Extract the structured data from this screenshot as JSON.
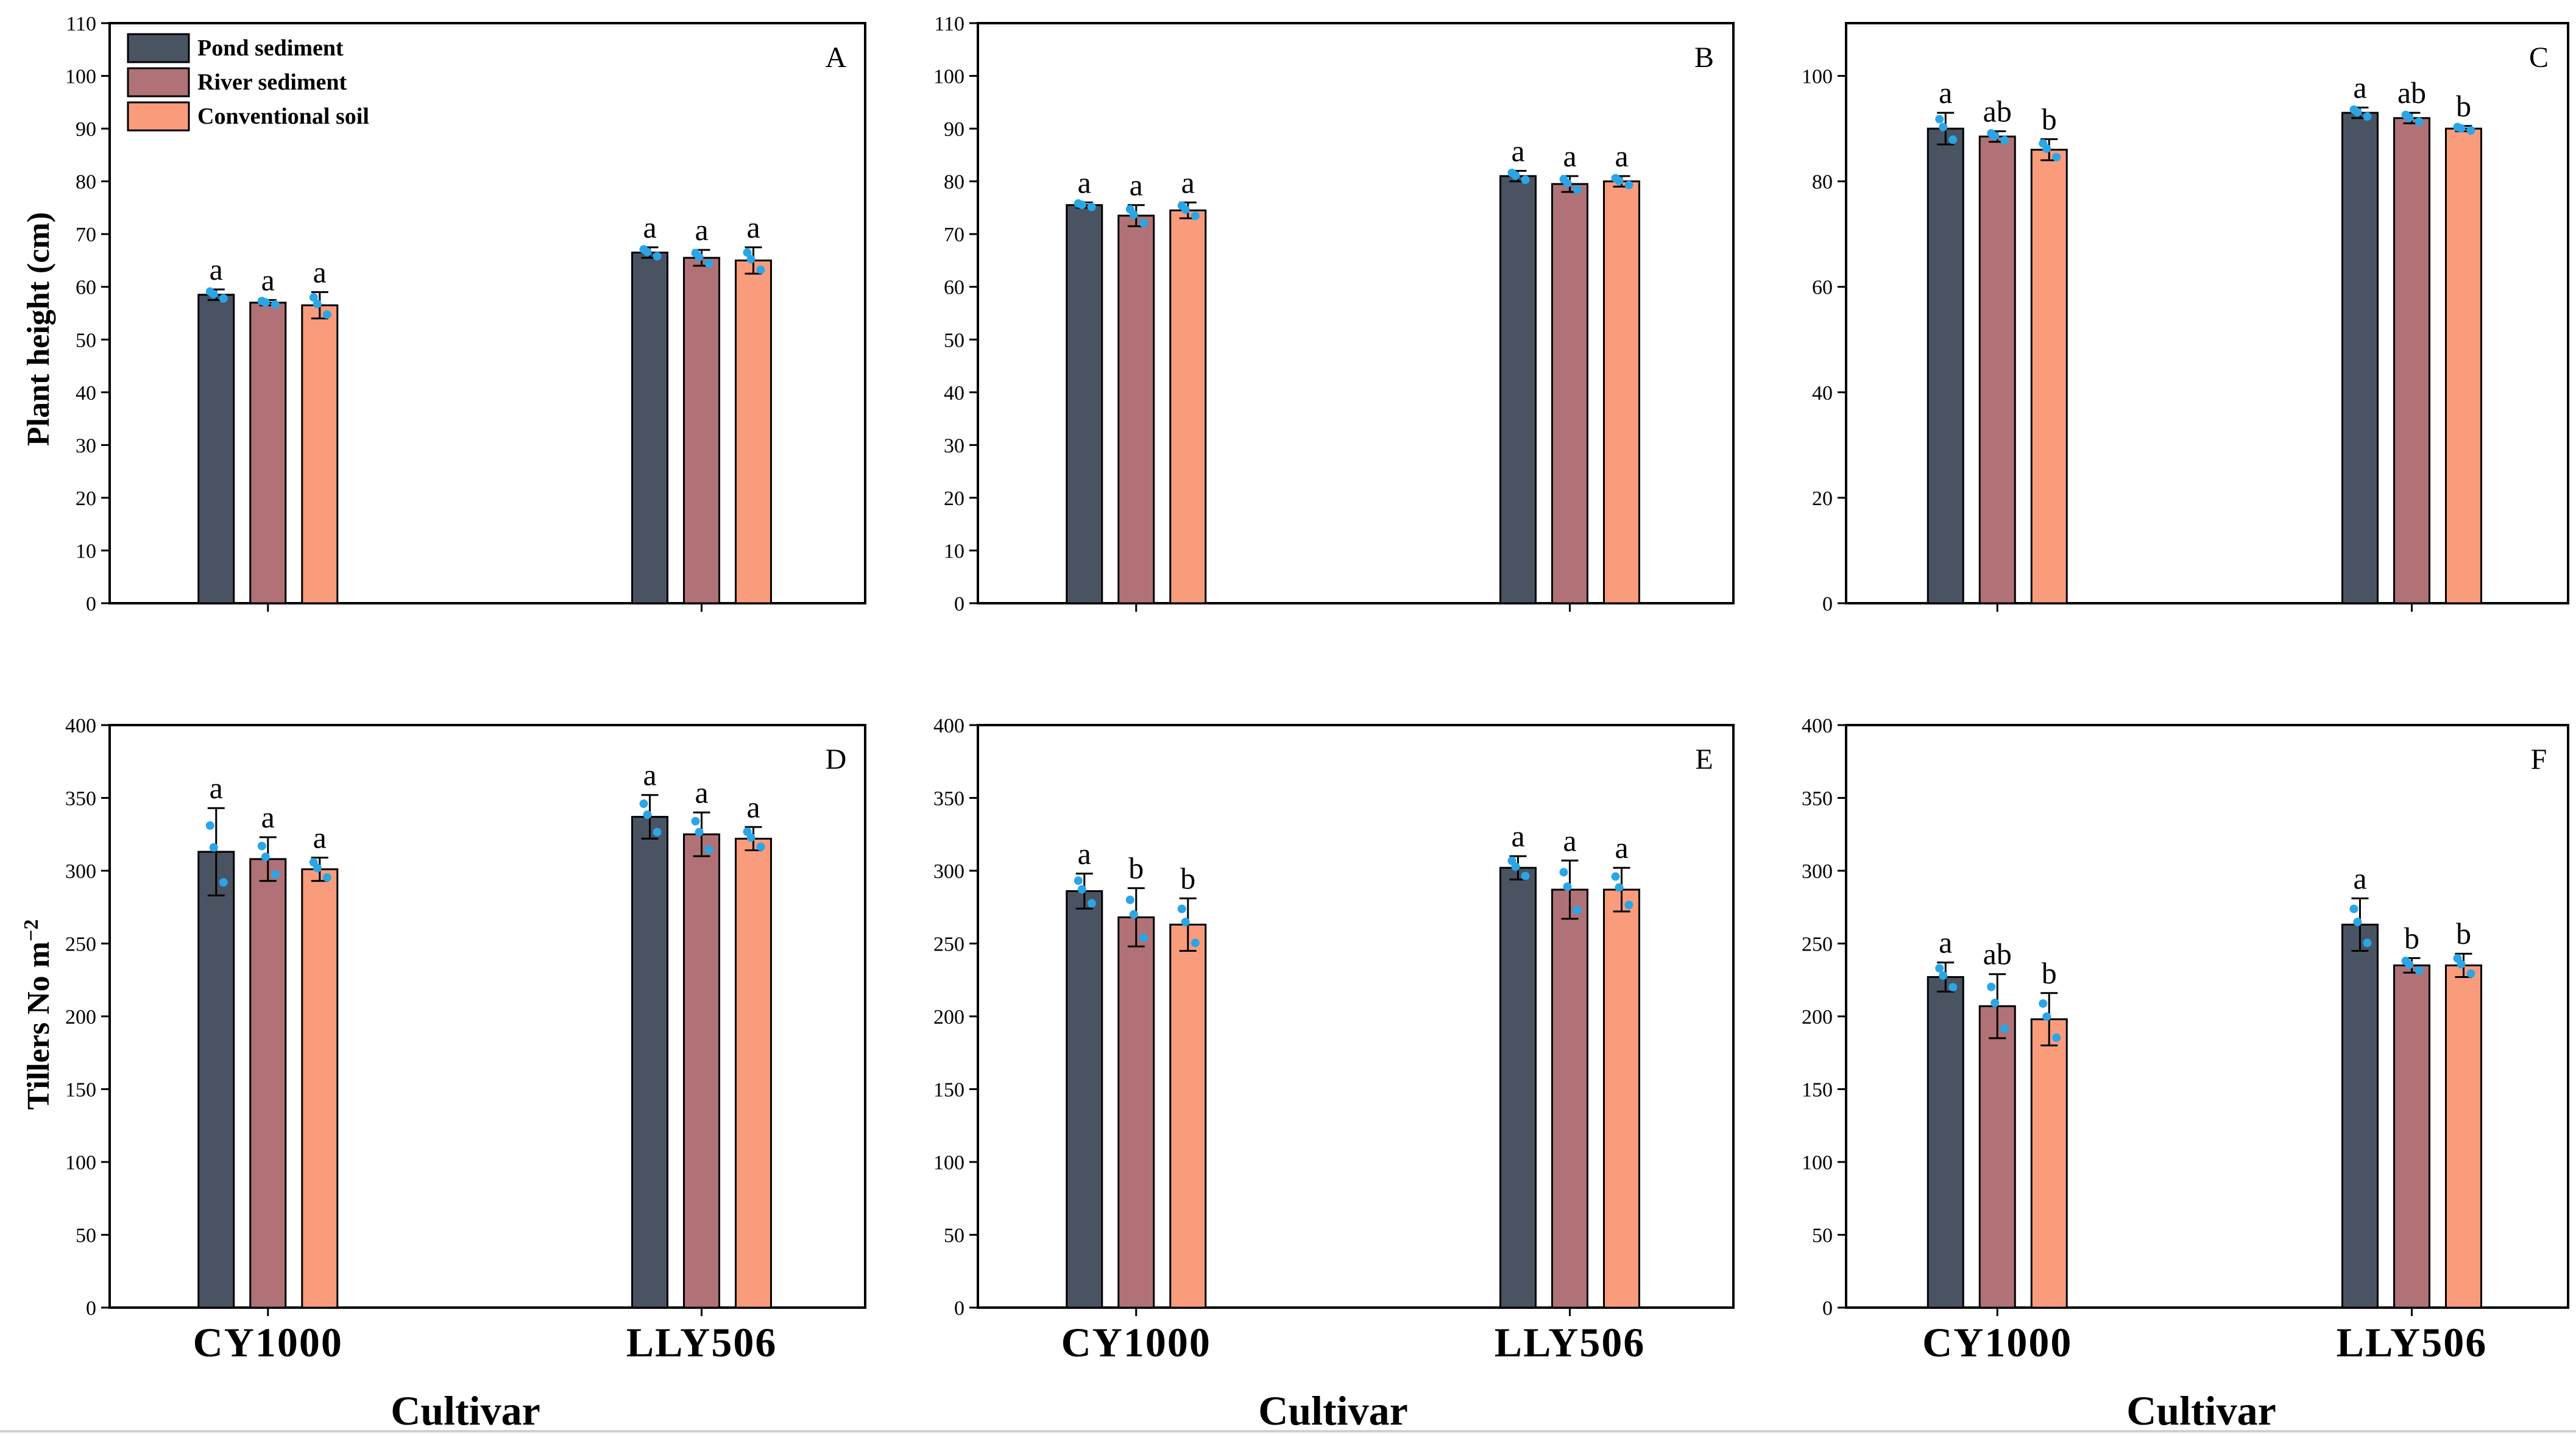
{
  "figure": {
    "ylabel_top": "Plant height (cm)",
    "ylabel_bottom_main": "Tillers No m",
    "ylabel_bottom_sup": "−2",
    "xlabel": "Cultivar"
  },
  "legend": [
    {
      "name": "Pond sediment",
      "color": "#4a5361"
    },
    {
      "name": "River sediment",
      "color": "#b07276"
    },
    {
      "name": "Conventional soil",
      "color": "#f99c7c"
    }
  ],
  "chart_data": [
    {
      "type": "bar",
      "panel": "A",
      "categories": [
        "CY1000",
        "LLY506"
      ],
      "series": [
        {
          "name": "Pond sediment",
          "values": [
            58.5,
            66.5
          ],
          "errors": [
            1.0,
            1.0
          ],
          "letters": [
            "a",
            "a"
          ]
        },
        {
          "name": "River sediment",
          "values": [
            57.0,
            65.5
          ],
          "errors": [
            0.5,
            1.5
          ],
          "letters": [
            "a",
            "a"
          ]
        },
        {
          "name": "Conventional soil",
          "values": [
            56.5,
            65.0
          ],
          "errors": [
            2.5,
            2.5
          ],
          "letters": [
            "a",
            "a"
          ]
        }
      ],
      "ylim": [
        0,
        110
      ],
      "yticks": [
        0,
        10,
        20,
        30,
        40,
        50,
        60,
        70,
        80,
        90,
        100,
        110
      ],
      "ylabel": "Plant height (cm)",
      "xlabel": "",
      "legend": "top-left"
    },
    {
      "type": "bar",
      "panel": "B",
      "categories": [
        "CY1000",
        "LLY506"
      ],
      "series": [
        {
          "name": "Pond sediment",
          "values": [
            75.5,
            81.0
          ],
          "errors": [
            0.5,
            1.0
          ],
          "letters": [
            "a",
            "a"
          ]
        },
        {
          "name": "River sediment",
          "values": [
            73.5,
            79.5
          ],
          "errors": [
            2.0,
            1.5
          ],
          "letters": [
            "a",
            "a"
          ]
        },
        {
          "name": "Conventional soil",
          "values": [
            74.5,
            80.0
          ],
          "errors": [
            1.5,
            1.0
          ],
          "letters": [
            "a",
            "a"
          ]
        }
      ],
      "ylim": [
        0,
        110
      ],
      "yticks": [
        0,
        10,
        20,
        30,
        40,
        50,
        60,
        70,
        80,
        90,
        100,
        110
      ],
      "ylabel": "",
      "xlabel": ""
    },
    {
      "type": "bar",
      "panel": "C",
      "categories": [
        "CY1000",
        "LLY506"
      ],
      "series": [
        {
          "name": "Pond sediment",
          "values": [
            90.0,
            93.0
          ],
          "errors": [
            3.0,
            1.0
          ],
          "letters": [
            "a",
            "a"
          ]
        },
        {
          "name": "River sediment",
          "values": [
            88.5,
            92.0
          ],
          "errors": [
            1.0,
            1.0
          ],
          "letters": [
            "ab",
            "ab"
          ]
        },
        {
          "name": "Conventional soil",
          "values": [
            86.0,
            90.0
          ],
          "errors": [
            2.0,
            0.5
          ],
          "letters": [
            "b",
            "b"
          ]
        }
      ],
      "ylim": [
        0,
        110
      ],
      "yticks": [
        0,
        20,
        40,
        60,
        80,
        100
      ],
      "ylabel": "",
      "xlabel": ""
    },
    {
      "type": "bar",
      "panel": "D",
      "categories": [
        "CY1000",
        "LLY506"
      ],
      "series": [
        {
          "name": "Pond sediment",
          "values": [
            313,
            337
          ],
          "errors": [
            30,
            15
          ],
          "letters": [
            "a",
            "a"
          ]
        },
        {
          "name": "River sediment",
          "values": [
            308,
            325
          ],
          "errors": [
            15,
            15
          ],
          "letters": [
            "a",
            "a"
          ]
        },
        {
          "name": "Conventional soil",
          "values": [
            301,
            322
          ],
          "errors": [
            8,
            8
          ],
          "letters": [
            "a",
            "a"
          ]
        }
      ],
      "ylim": [
        0,
        400
      ],
      "yticks": [
        0,
        50,
        100,
        150,
        200,
        250,
        300,
        350,
        400
      ],
      "ylabel": "Tillers No m−2",
      "xlabel": "Cultivar"
    },
    {
      "type": "bar",
      "panel": "E",
      "categories": [
        "CY1000",
        "LLY506"
      ],
      "series": [
        {
          "name": "Pond sediment",
          "values": [
            286,
            302
          ],
          "errors": [
            12,
            8
          ],
          "letters": [
            "a",
            "a"
          ]
        },
        {
          "name": "River sediment",
          "values": [
            268,
            287
          ],
          "errors": [
            20,
            20
          ],
          "letters": [
            "b",
            "a"
          ]
        },
        {
          "name": "Conventional soil",
          "values": [
            263,
            287
          ],
          "errors": [
            18,
            15
          ],
          "letters": [
            "b",
            "a"
          ]
        }
      ],
      "ylim": [
        0,
        400
      ],
      "yticks": [
        0,
        50,
        100,
        150,
        200,
        250,
        300,
        350,
        400
      ],
      "ylabel": "",
      "xlabel": "Cultivar"
    },
    {
      "type": "bar",
      "panel": "F",
      "categories": [
        "CY1000",
        "LLY506"
      ],
      "series": [
        {
          "name": "Pond sediment",
          "values": [
            227,
            263
          ],
          "errors": [
            10,
            18
          ],
          "letters": [
            "a",
            "a"
          ]
        },
        {
          "name": "River sediment",
          "values": [
            207,
            235
          ],
          "errors": [
            22,
            5
          ],
          "letters": [
            "ab",
            "b"
          ]
        },
        {
          "name": "Conventional soil",
          "values": [
            198,
            235
          ],
          "errors": [
            18,
            8
          ],
          "letters": [
            "b",
            "b"
          ]
        }
      ],
      "ylim": [
        0,
        400
      ],
      "yticks": [
        0,
        50,
        100,
        150,
        200,
        250,
        300,
        350,
        400
      ],
      "ylabel": "",
      "xlabel": "Cultivar"
    }
  ]
}
